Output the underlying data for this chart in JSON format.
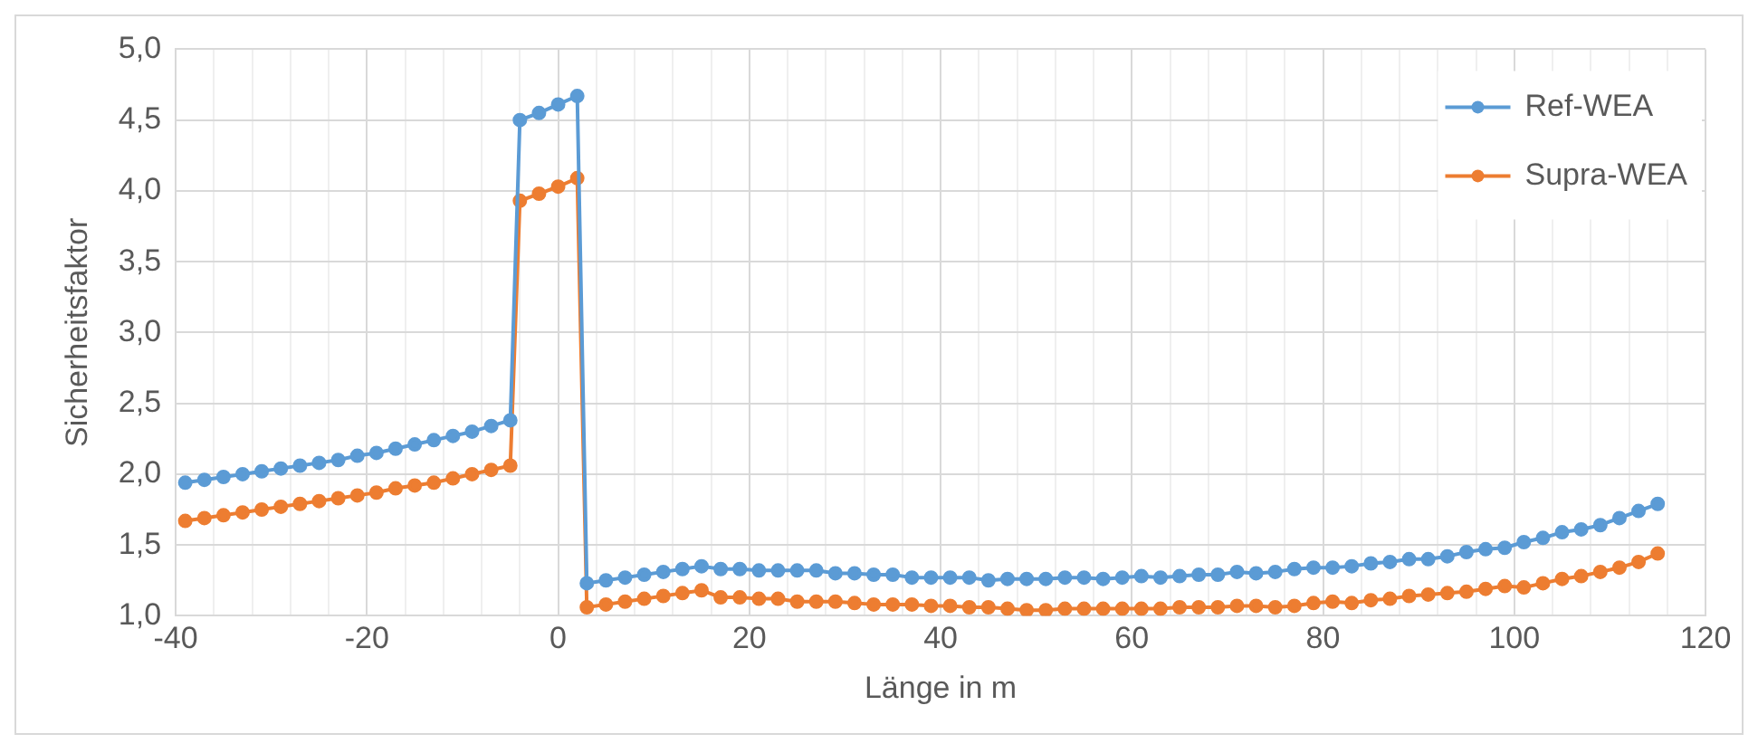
{
  "chart_data": {
    "type": "line",
    "xlabel": "Länge in m",
    "ylabel": "Sicherheitsfaktor",
    "xlim": [
      -40,
      120
    ],
    "xticks": [
      -40,
      {
        "value": -36,
        "label": null
      },
      {
        "value": -32,
        "label": null
      },
      {
        "value": -28,
        "label": null
      },
      {
        "value": -24,
        "label": null
      },
      -20,
      {
        "value": -16,
        "label": null
      },
      {
        "value": -12,
        "label": null
      },
      {
        "value": -8,
        "label": null
      },
      {
        "value": -4,
        "label": null
      },
      0,
      {
        "value": 4,
        "label": null
      },
      {
        "value": 8,
        "label": null
      },
      {
        "value": 12,
        "label": null
      },
      {
        "value": 16,
        "label": null
      },
      20,
      {
        "value": 24,
        "label": null
      },
      {
        "value": 28,
        "label": null
      },
      {
        "value": 32,
        "label": null
      },
      {
        "value": 36,
        "label": null
      },
      40,
      {
        "value": 44,
        "label": null
      },
      {
        "value": 48,
        "label": null
      },
      {
        "value": 52,
        "label": null
      },
      {
        "value": 56,
        "label": null
      },
      60,
      {
        "value": 64,
        "label": null
      },
      {
        "value": 68,
        "label": null
      },
      {
        "value": 72,
        "label": null
      },
      {
        "value": 76,
        "label": null
      },
      80,
      {
        "value": 84,
        "label": null
      },
      {
        "value": 88,
        "label": null
      },
      {
        "value": 92,
        "label": null
      },
      {
        "value": 96,
        "label": null
      },
      100,
      {
        "value": 104,
        "label": null
      },
      {
        "value": 108,
        "label": null
      },
      {
        "value": 112,
        "label": null
      },
      {
        "value": 116,
        "label": null
      },
      120
    ],
    "ylim": [
      1,
      5
    ],
    "yticks": [
      {
        "value": 1,
        "label": "1,0"
      },
      {
        "value": 1.5,
        "label": "1,5"
      },
      {
        "value": 2,
        "label": "2,0"
      },
      {
        "value": 2.5,
        "label": "2,5"
      },
      {
        "value": 3,
        "label": "3,0"
      },
      {
        "value": 3.5,
        "label": "3,5"
      },
      {
        "value": 4,
        "label": "4,0"
      },
      {
        "value": 4.5,
        "label": "4,5"
      },
      {
        "value": 5,
        "label": "5,0"
      }
    ],
    "grid": true,
    "legend": "top right",
    "marker": "circle",
    "line_style": "solid",
    "x": [
      -39,
      -37,
      -35,
      -33,
      -31,
      -29,
      -27,
      -25,
      -23,
      -21,
      -19,
      -17,
      -15,
      -13,
      -11,
      -9,
      -7,
      -5,
      -4,
      -2,
      0,
      2,
      3,
      5,
      7,
      9,
      11,
      13,
      15,
      17,
      19,
      21,
      23,
      25,
      27,
      29,
      31,
      33,
      35,
      37,
      39,
      41,
      43,
      45,
      47,
      49,
      51,
      53,
      55,
      57,
      59,
      61,
      63,
      65,
      67,
      69,
      71,
      73,
      75,
      77,
      79,
      81,
      83,
      85,
      87,
      89,
      91,
      93,
      95,
      97,
      99,
      101,
      103,
      105,
      107,
      109,
      111,
      113,
      115
    ],
    "series": [
      {
        "name": "Ref-WEA",
        "color": "#5b9bd5",
        "values": [
          1.94,
          1.96,
          1.98,
          2.0,
          2.02,
          2.04,
          2.06,
          2.08,
          2.1,
          2.13,
          2.15,
          2.18,
          2.21,
          2.24,
          2.27,
          2.3,
          2.34,
          2.38,
          4.5,
          4.55,
          4.61,
          4.67,
          1.23,
          1.25,
          1.27,
          1.29,
          1.31,
          1.33,
          1.35,
          1.33,
          1.33,
          1.32,
          1.32,
          1.32,
          1.32,
          1.3,
          1.3,
          1.29,
          1.29,
          1.27,
          1.27,
          1.27,
          1.27,
          1.25,
          1.26,
          1.26,
          1.26,
          1.27,
          1.27,
          1.26,
          1.27,
          1.28,
          1.27,
          1.28,
          1.29,
          1.29,
          1.31,
          1.3,
          1.31,
          1.33,
          1.34,
          1.34,
          1.35,
          1.37,
          1.38,
          1.4,
          1.4,
          1.42,
          1.45,
          1.47,
          1.48,
          1.52,
          1.55,
          1.59,
          1.61,
          1.64,
          1.69,
          1.74,
          1.79
        ]
      },
      {
        "name": "Supra-WEA",
        "color": "#ed7d31",
        "values": [
          1.67,
          1.69,
          1.71,
          1.73,
          1.75,
          1.77,
          1.79,
          1.81,
          1.83,
          1.85,
          1.87,
          1.9,
          1.92,
          1.94,
          1.97,
          2.0,
          2.03,
          2.06,
          3.93,
          3.98,
          4.03,
          4.09,
          1.06,
          1.08,
          1.1,
          1.12,
          1.14,
          1.16,
          1.18,
          1.13,
          1.13,
          1.12,
          1.12,
          1.1,
          1.1,
          1.1,
          1.09,
          1.08,
          1.08,
          1.08,
          1.07,
          1.07,
          1.06,
          1.06,
          1.05,
          1.04,
          1.04,
          1.05,
          1.05,
          1.05,
          1.05,
          1.05,
          1.05,
          1.06,
          1.06,
          1.06,
          1.07,
          1.07,
          1.06,
          1.07,
          1.09,
          1.1,
          1.09,
          1.11,
          1.12,
          1.14,
          1.15,
          1.16,
          1.17,
          1.19,
          1.21,
          1.2,
          1.23,
          1.26,
          1.28,
          1.31,
          1.34,
          1.38,
          1.44
        ]
      }
    ]
  }
}
